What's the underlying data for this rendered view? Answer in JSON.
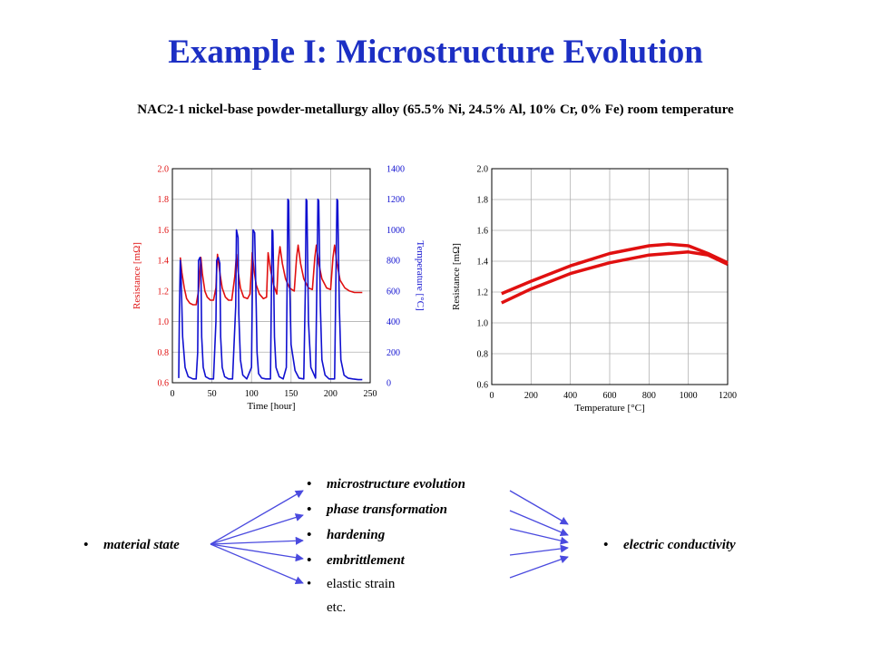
{
  "title": "Example I: Microstructure Evolution",
  "subtitle": "NAC2-1 nickel-base powder-metallurgy alloy (65.5% Ni, 24.5% Al, 10% Cr, 0% Fe) room temperature",
  "diagram": {
    "source": "material state",
    "mechanisms": [
      "microstructure evolution",
      "phase transformation",
      "hardening",
      "embrittlement",
      "elastic strain",
      "etc."
    ],
    "target": "electric conductivity"
  },
  "colors": {
    "title": "#1c2fc4",
    "resistance": "#e01010",
    "temperature": "#1010d0",
    "arrow": "#4a4adf"
  },
  "chart_data": [
    {
      "type": "line",
      "xlabel": "Time [hour]",
      "ylabel": "Resistance [mΩ]",
      "y2label": "Temperature [°C]",
      "xlim": [
        0,
        250
      ],
      "ylim": [
        0.6,
        2.0
      ],
      "y2lim": [
        0,
        1400
      ],
      "xticks": [
        "0",
        "50",
        "100",
        "150",
        "200",
        "250"
      ],
      "yticks": [
        "0.6",
        "0.8",
        "1.0",
        "1.2",
        "1.4",
        "1.6",
        "1.8",
        "2.0"
      ],
      "y2ticks": [
        "0",
        "200",
        "400",
        "600",
        "800",
        "1000",
        "1200",
        "1400"
      ],
      "grid": true,
      "series": [
        {
          "axis": "left",
          "color": "#e01010",
          "x": [
            10,
            12,
            15,
            18,
            22,
            26,
            30,
            33,
            36,
            38,
            41,
            44,
            48,
            52,
            55,
            57,
            60,
            63,
            67,
            71,
            75,
            79,
            81,
            83,
            86,
            90,
            95,
            98,
            101,
            103,
            106,
            110,
            115,
            119,
            121,
            124,
            128,
            132,
            134,
            136,
            139,
            143,
            148,
            154,
            157,
            159,
            162,
            166,
            172,
            177,
            180,
            182,
            185,
            189,
            195,
            200,
            203,
            205,
            208,
            212,
            218,
            224,
            230,
            236,
            240
          ],
          "y": [
            1.42,
            1.32,
            1.22,
            1.15,
            1.12,
            1.11,
            1.11,
            1.2,
            1.42,
            1.31,
            1.2,
            1.16,
            1.14,
            1.14,
            1.22,
            1.44,
            1.32,
            1.22,
            1.16,
            1.14,
            1.14,
            1.3,
            1.44,
            1.33,
            1.22,
            1.16,
            1.15,
            1.18,
            1.45,
            1.34,
            1.24,
            1.18,
            1.15,
            1.16,
            1.45,
            1.34,
            1.24,
            1.18,
            1.4,
            1.49,
            1.38,
            1.28,
            1.22,
            1.2,
            1.42,
            1.5,
            1.38,
            1.28,
            1.22,
            1.21,
            1.42,
            1.5,
            1.38,
            1.28,
            1.22,
            1.21,
            1.42,
            1.5,
            1.38,
            1.27,
            1.22,
            1.2,
            1.19,
            1.19,
            1.19
          ]
        },
        {
          "axis": "right",
          "color": "#1010d0",
          "x": [
            8,
            9,
            10,
            11,
            13,
            16,
            20,
            26,
            30,
            32,
            33,
            35,
            36,
            37,
            39,
            42,
            47,
            52,
            55,
            56,
            58,
            60,
            61,
            63,
            66,
            71,
            76,
            80,
            81,
            83,
            84,
            86,
            89,
            94,
            100,
            102,
            104,
            106,
            107,
            109,
            113,
            118,
            124,
            126,
            127,
            128,
            129,
            131,
            135,
            140,
            144,
            146,
            147,
            148,
            150,
            155,
            160,
            166,
            168,
            169,
            170,
            172,
            175,
            181,
            183,
            184,
            185,
            187,
            189,
            193,
            198,
            205,
            207,
            208,
            209,
            211,
            213,
            217,
            222,
            228,
            235,
            240
          ],
          "y": [
            30,
            500,
            800,
            700,
            300,
            100,
            40,
            25,
            25,
            200,
            800,
            820,
            780,
            300,
            100,
            40,
            25,
            25,
            400,
            800,
            820,
            780,
            300,
            100,
            40,
            25,
            25,
            500,
            1000,
            950,
            450,
            150,
            50,
            25,
            100,
            1000,
            980,
            500,
            200,
            60,
            30,
            25,
            25,
            1000,
            990,
            700,
            300,
            100,
            40,
            25,
            100,
            1200,
            1190,
            700,
            250,
            80,
            30,
            25,
            600,
            1200,
            1190,
            400,
            100,
            30,
            800,
            1200,
            1190,
            500,
            150,
            50,
            25,
            25,
            800,
            1200,
            1190,
            500,
            150,
            50,
            30,
            25,
            20,
            20
          ]
        }
      ]
    },
    {
      "type": "line",
      "xlabel": "Temperature [°C]",
      "ylabel": "Resistance [mΩ]",
      "xlim": [
        0,
        1200
      ],
      "ylim": [
        0.6,
        2.0
      ],
      "xticks": [
        "0",
        "200",
        "400",
        "600",
        "800",
        "1000",
        "1200"
      ],
      "yticks": [
        "0.6",
        "0.8",
        "1.0",
        "1.2",
        "1.4",
        "1.6",
        "1.8",
        "2.0"
      ],
      "grid": true,
      "series": [
        {
          "color": "#e01010",
          "x": [
            50,
            200,
            400,
            600,
            800,
            900,
            1000,
            1100,
            1200
          ],
          "y": [
            1.19,
            1.27,
            1.37,
            1.45,
            1.5,
            1.51,
            1.5,
            1.45,
            1.39
          ]
        },
        {
          "color": "#e01010",
          "x": [
            50,
            200,
            400,
            600,
            800,
            900,
            1000,
            1100,
            1200
          ],
          "y": [
            1.13,
            1.22,
            1.32,
            1.39,
            1.44,
            1.45,
            1.46,
            1.44,
            1.38
          ]
        }
      ]
    }
  ]
}
